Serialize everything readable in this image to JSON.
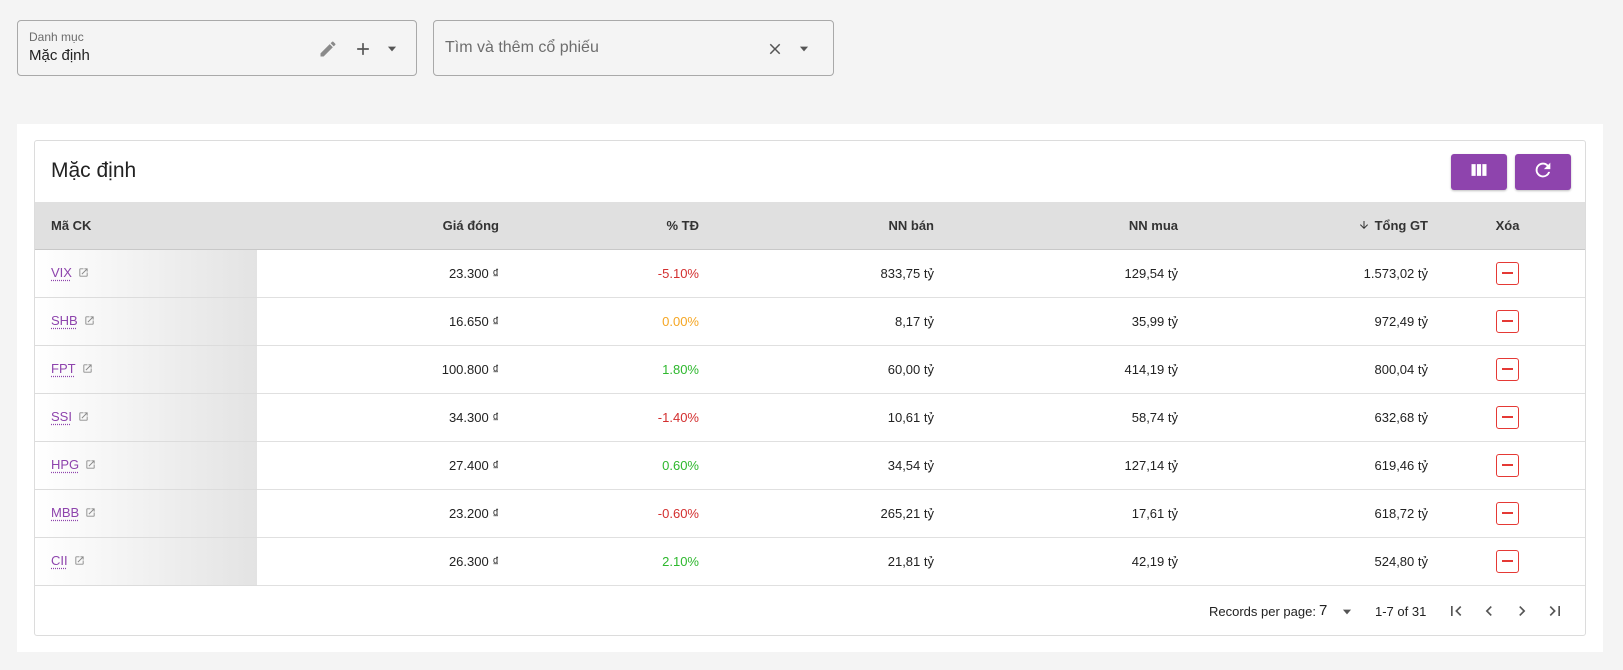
{
  "category": {
    "label": "Danh mục",
    "value": "Mặc định"
  },
  "search": {
    "placeholder": "Tìm và thêm cổ phiếu"
  },
  "card": {
    "title": "Mặc định"
  },
  "table": {
    "headers": [
      "Mã CK",
      "Giá đóng",
      "% TĐ",
      "NN bán",
      "NN mua",
      "Tổng GT",
      "Xóa"
    ],
    "sort_column": "Tổng GT",
    "sort_direction": "desc",
    "rows": [
      {
        "ticker": "VIX",
        "close": "23.300 ₫",
        "change": "-5.10%",
        "trend": "neg",
        "nn_sell": "833,75 tỷ",
        "nn_buy": "129,54 tỷ",
        "total": "1.573,02 tỷ"
      },
      {
        "ticker": "SHB",
        "close": "16.650 ₫",
        "change": "0.00%",
        "trend": "zero",
        "nn_sell": "8,17 tỷ",
        "nn_buy": "35,99 tỷ",
        "total": "972,49 tỷ"
      },
      {
        "ticker": "FPT",
        "close": "100.800 ₫",
        "change": "1.80%",
        "trend": "pos",
        "nn_sell": "60,00 tỷ",
        "nn_buy": "414,19 tỷ",
        "total": "800,04 tỷ"
      },
      {
        "ticker": "SSI",
        "close": "34.300 ₫",
        "change": "-1.40%",
        "trend": "neg",
        "nn_sell": "10,61 tỷ",
        "nn_buy": "58,74 tỷ",
        "total": "632,68 tỷ"
      },
      {
        "ticker": "HPG",
        "close": "27.400 ₫",
        "change": "0.60%",
        "trend": "pos",
        "nn_sell": "34,54 tỷ",
        "nn_buy": "127,14 tỷ",
        "total": "619,46 tỷ"
      },
      {
        "ticker": "MBB",
        "close": "23.200 ₫",
        "change": "-0.60%",
        "trend": "neg",
        "nn_sell": "265,21 tỷ",
        "nn_buy": "17,61 tỷ",
        "total": "618,72 tỷ"
      },
      {
        "ticker": "CII",
        "close": "26.300 ₫",
        "change": "2.10%",
        "trend": "pos",
        "nn_sell": "21,81 tỷ",
        "nn_buy": "42,19 tỷ",
        "total": "524,80 tỷ"
      }
    ]
  },
  "pagination": {
    "label": "Records per page:",
    "per_page": "7",
    "range": "1-7 of 31"
  },
  "colors": {
    "accent": "#8e44ad",
    "negative": "#d32f2f",
    "neutral": "#f5a623",
    "positive": "#2eb82e",
    "delete": "#e53935"
  },
  "icons": [
    "pencil-icon",
    "plus-icon",
    "caret-down-icon",
    "close-icon",
    "columns-icon",
    "refresh-icon",
    "external-link-icon",
    "minus-icon",
    "sort-desc-icon",
    "first-page-icon",
    "prev-page-icon",
    "next-page-icon",
    "last-page-icon"
  ]
}
